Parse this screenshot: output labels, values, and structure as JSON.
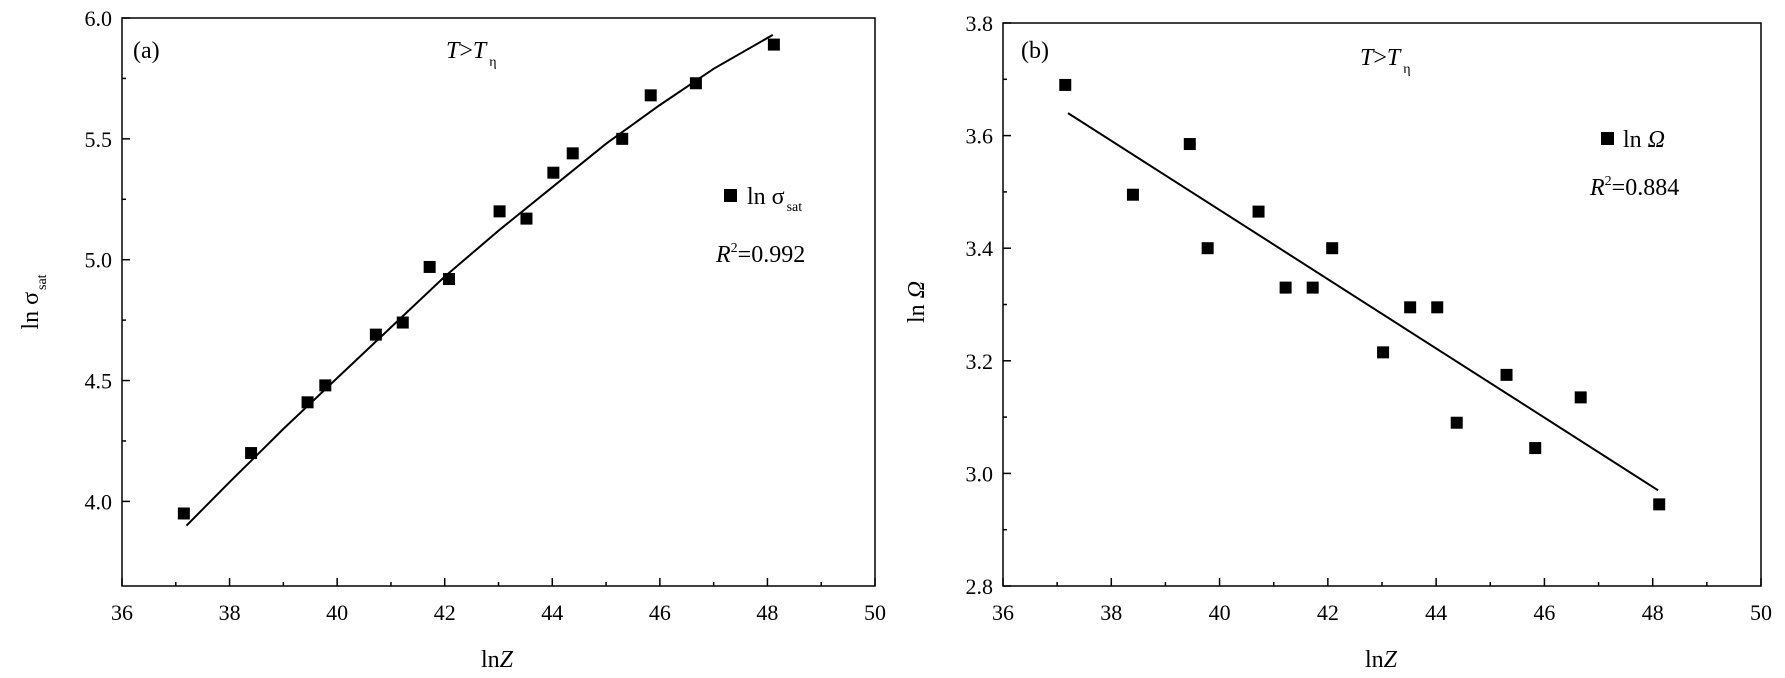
{
  "chart_data": [
    {
      "type": "scatter",
      "panel_label": "(a)",
      "condition": {
        "left": "T",
        "op": ">",
        "right": "T",
        "sub": "η"
      },
      "xlabel": {
        "main": "ln",
        "var": "Z"
      },
      "ylabel": {
        "main": "ln σ",
        "sub": "sat"
      },
      "xlim": [
        36,
        50
      ],
      "ylim": [
        3.65,
        6.0
      ],
      "xticks": [
        36,
        38,
        40,
        42,
        44,
        46,
        48,
        50
      ],
      "yticks": [
        4.0,
        4.5,
        5.0,
        5.5,
        6.0
      ],
      "xtick_labels": [
        "36",
        "38",
        "40",
        "42",
        "44",
        "46",
        "48",
        "50"
      ],
      "ytick_labels": [
        "4.0",
        "4.5",
        "5.0",
        "5.5",
        "6.0"
      ],
      "series": [
        {
          "name": "ln σ_sat",
          "legend": {
            "main": "ln σ",
            "sub": "sat"
          },
          "marker": "square",
          "x": [
            37.15,
            38.4,
            39.45,
            39.78,
            40.72,
            41.22,
            41.72,
            42.08,
            43.02,
            43.52,
            44.02,
            44.38,
            45.3,
            45.83,
            46.67,
            48.12
          ],
          "y": [
            3.95,
            4.2,
            4.41,
            4.48,
            4.69,
            4.74,
            4.97,
            4.92,
            5.2,
            5.17,
            5.36,
            5.44,
            5.5,
            5.68,
            5.73,
            5.89
          ]
        }
      ],
      "fit": {
        "type": "curve",
        "x": [
          37.2,
          38.0,
          39.0,
          40.0,
          41.0,
          42.0,
          43.0,
          44.0,
          45.0,
          46.0,
          47.0,
          48.1
        ],
        "y": [
          3.9,
          4.08,
          4.3,
          4.51,
          4.72,
          4.93,
          5.12,
          5.3,
          5.48,
          5.64,
          5.79,
          5.93
        ]
      },
      "r2": {
        "label": "R",
        "sup": "2",
        "value": "=0.992"
      }
    },
    {
      "type": "scatter",
      "panel_label": "(b)",
      "condition": {
        "left": "T",
        "op": ">",
        "right": "T",
        "sub": "η"
      },
      "xlabel": {
        "main": "ln",
        "var": "Z"
      },
      "ylabel": {
        "main": "ln ",
        "var": "Ω"
      },
      "xlim": [
        36,
        50
      ],
      "ylim": [
        2.8,
        3.8
      ],
      "xticks": [
        36,
        38,
        40,
        42,
        44,
        46,
        48,
        50
      ],
      "yticks": [
        2.8,
        3.0,
        3.2,
        3.4,
        3.6,
        3.8
      ],
      "xtick_labels": [
        "36",
        "38",
        "40",
        "42",
        "44",
        "46",
        "48",
        "50"
      ],
      "ytick_labels": [
        "2.8",
        "3.0",
        "3.2",
        "3.4",
        "3.6",
        "3.8"
      ],
      "series": [
        {
          "name": "ln Ω",
          "legend": {
            "main": "ln ",
            "var": "Ω"
          },
          "marker": "square",
          "x": [
            37.15,
            38.4,
            39.45,
            39.78,
            40.72,
            41.22,
            41.72,
            42.08,
            43.02,
            43.52,
            44.02,
            44.38,
            45.3,
            45.83,
            46.67,
            48.12
          ],
          "y": [
            3.69,
            3.495,
            3.585,
            3.4,
            3.465,
            3.33,
            3.33,
            3.4,
            3.215,
            3.295,
            3.295,
            3.09,
            3.175,
            3.045,
            3.135,
            2.945
          ]
        }
      ],
      "fit": {
        "type": "line",
        "x": [
          37.2,
          48.1
        ],
        "y": [
          3.64,
          2.97
        ]
      },
      "r2": {
        "label": "R",
        "sup": "2",
        "value": "=0.884"
      }
    }
  ]
}
